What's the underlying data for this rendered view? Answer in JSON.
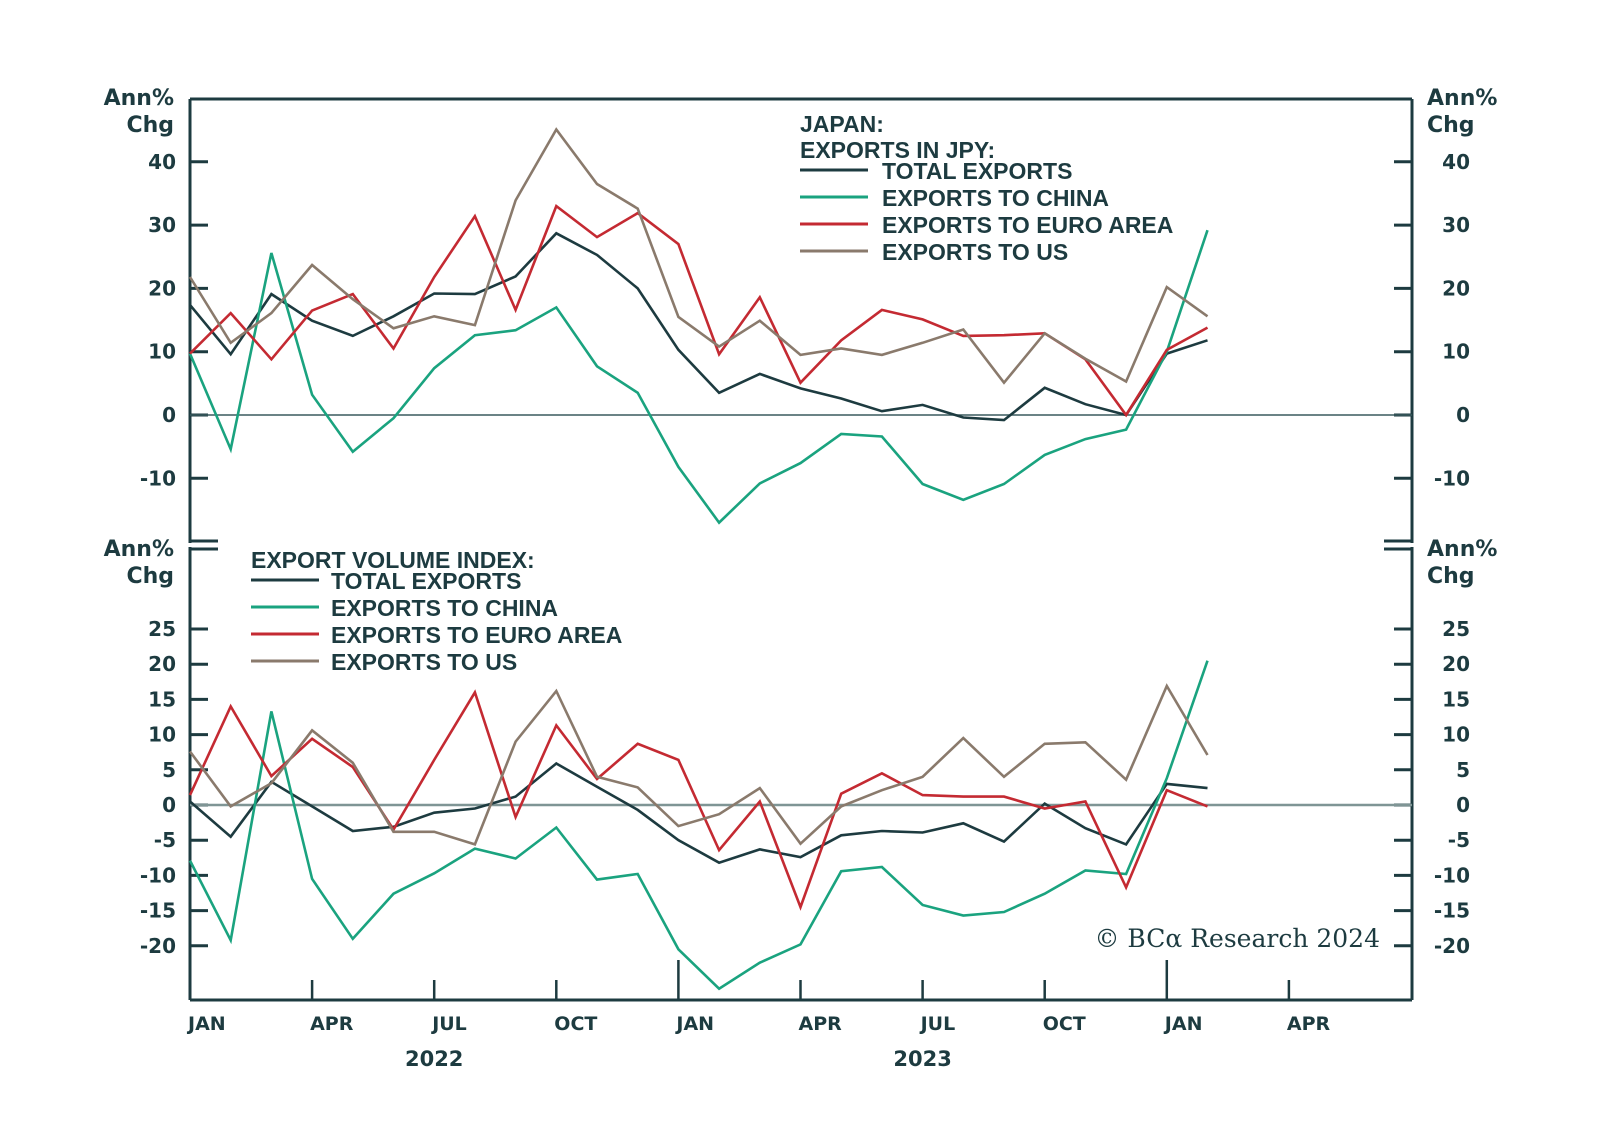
{
  "chart_data": [
    {
      "type": "line",
      "panel": "top",
      "title": "JAPAN:",
      "subtitle": "EXPORTS IN JPY:",
      "ylabel_left": [
        "Ann%",
        "Chg"
      ],
      "ylabel_right": [
        "Ann%",
        "Chg"
      ],
      "ylim": [
        -20,
        46
      ],
      "yticks": [
        40,
        30,
        20,
        10,
        0,
        -10
      ],
      "ytick_labels": [
        "40",
        "30",
        "20",
        "10",
        "0",
        "-10"
      ],
      "grid": false,
      "zero_line": true,
      "legend_position": "top-right",
      "x": [
        "2022-01",
        "2022-02",
        "2022-03",
        "2022-04",
        "2022-05",
        "2022-06",
        "2022-07",
        "2022-08",
        "2022-09",
        "2022-10",
        "2022-11",
        "2022-12",
        "2023-01",
        "2023-02",
        "2023-03",
        "2023-04",
        "2023-05",
        "2023-06",
        "2023-07",
        "2023-08",
        "2023-09",
        "2023-10",
        "2023-11",
        "2023-12",
        "2024-01",
        "2024-02"
      ],
      "series": [
        {
          "name": "TOTAL EXPORTS",
          "color": "#1d3b40",
          "values": [
            17.4,
            9.6,
            19.1,
            14.9,
            12.5,
            15.6,
            19.2,
            19.1,
            21.9,
            28.7,
            25.3,
            20.0,
            10.3,
            3.5,
            6.5,
            4.2,
            2.6,
            0.6,
            1.6,
            -0.4,
            -0.8,
            4.3,
            1.7,
            0.0,
            9.7,
            11.8
          ]
        },
        {
          "name": "EXPORTS TO CHINA",
          "color": "#1aa37f",
          "values": [
            9.7,
            -5.4,
            25.6,
            3.2,
            -5.8,
            -0.5,
            7.4,
            12.6,
            13.4,
            17.0,
            7.7,
            3.5,
            -8.2,
            -17.0,
            -10.8,
            -7.6,
            -3.0,
            -3.4,
            -10.9,
            -13.4,
            -10.9,
            -6.3,
            -3.8,
            -2.3,
            10.0,
            29.2
          ]
        },
        {
          "name": "EXPORTS TO EURO AREA",
          "color": "#c42a32",
          "values": [
            9.7,
            16.1,
            8.8,
            16.5,
            19.1,
            10.5,
            21.8,
            31.4,
            16.6,
            33.0,
            28.1,
            31.9,
            27.0,
            9.6,
            18.6,
            5.1,
            11.8,
            16.6,
            15.1,
            12.5,
            12.6,
            12.9,
            8.8,
            0.0,
            10.3,
            13.8
          ]
        },
        {
          "name": "EXPORTS TO US",
          "color": "#8a7a6c",
          "values": [
            21.8,
            11.4,
            16.1,
            23.7,
            18.3,
            13.7,
            15.6,
            14.2,
            33.9,
            45.1,
            36.5,
            32.6,
            15.5,
            10.8,
            14.9,
            9.5,
            10.5,
            9.5,
            11.4,
            13.5,
            5.1,
            12.9,
            8.9,
            5.3,
            20.2,
            15.6
          ]
        }
      ]
    },
    {
      "type": "line",
      "panel": "bottom",
      "title": "EXPORT VOLUME INDEX:",
      "ylabel_left": [
        "Ann%",
        "Chg"
      ],
      "ylabel_right": [
        "Ann%",
        "Chg"
      ],
      "ylim": [
        -28,
        36
      ],
      "yticks": [
        25,
        20,
        15,
        10,
        5,
        0,
        -5,
        -10,
        -15,
        -20
      ],
      "ytick_labels": [
        "25",
        "20",
        "15",
        "10",
        "5",
        "0",
        "-5",
        "-10",
        "-15",
        "-20"
      ],
      "grid": false,
      "zero_line": true,
      "legend_position": "top-left",
      "x": [
        "2022-01",
        "2022-02",
        "2022-03",
        "2022-04",
        "2022-05",
        "2022-06",
        "2022-07",
        "2022-08",
        "2022-09",
        "2022-10",
        "2022-11",
        "2022-12",
        "2023-01",
        "2023-02",
        "2023-03",
        "2023-04",
        "2023-05",
        "2023-06",
        "2023-07",
        "2023-08",
        "2023-09",
        "2023-10",
        "2023-11",
        "2023-12",
        "2024-01",
        "2024-02"
      ],
      "series": [
        {
          "name": "TOTAL EXPORTS",
          "color": "#1d3b40",
          "values": [
            0.5,
            -4.5,
            3.3,
            -0.2,
            -3.7,
            -3.1,
            -1.1,
            -0.5,
            1.2,
            5.9,
            2.6,
            -0.7,
            -5.0,
            -8.2,
            -6.3,
            -7.4,
            -4.3,
            -3.7,
            -3.9,
            -2.6,
            -5.2,
            0.2,
            -3.3,
            -5.6,
            3.0,
            2.4
          ]
        },
        {
          "name": "EXPORTS TO CHINA",
          "color": "#1aa37f",
          "values": [
            -7.9,
            -19.2,
            13.3,
            -10.5,
            -19.0,
            -12.6,
            -9.7,
            -6.2,
            -7.6,
            -3.2,
            -10.6,
            -9.8,
            -20.5,
            -26.1,
            -22.4,
            -19.8,
            -9.4,
            -8.8,
            -14.2,
            -15.7,
            -15.2,
            -12.6,
            -9.3,
            -9.8,
            3.8,
            20.5
          ]
        },
        {
          "name": "EXPORTS TO EURO AREA",
          "color": "#c42a32",
          "values": [
            1.4,
            14.0,
            4.1,
            9.4,
            5.4,
            -3.5,
            6.4,
            16.0,
            -1.7,
            11.3,
            3.7,
            8.7,
            6.4,
            -6.4,
            0.5,
            -14.5,
            1.6,
            4.5,
            1.4,
            1.2,
            1.2,
            -0.5,
            0.5,
            -11.7,
            2.1,
            -0.2
          ]
        },
        {
          "name": "EXPORTS TO US",
          "color": "#8a7a6c",
          "values": [
            7.6,
            -0.2,
            3.1,
            10.6,
            6.0,
            -3.8,
            -3.8,
            -5.6,
            9.0,
            16.2,
            4.0,
            2.5,
            -3.0,
            -1.3,
            2.4,
            -5.5,
            -0.2,
            2.1,
            4.0,
            9.5,
            4.0,
            8.7,
            8.9,
            3.6,
            16.9,
            7.1
          ]
        }
      ]
    }
  ],
  "x_axis": {
    "month_labels": [
      "JAN",
      "APR",
      "JUL",
      "OCT",
      "JAN",
      "APR",
      "JUL",
      "OCT",
      "JAN",
      "APR"
    ],
    "year_labels": [
      "2022",
      "2023"
    ]
  },
  "copyright": "© BCα Research 2024"
}
